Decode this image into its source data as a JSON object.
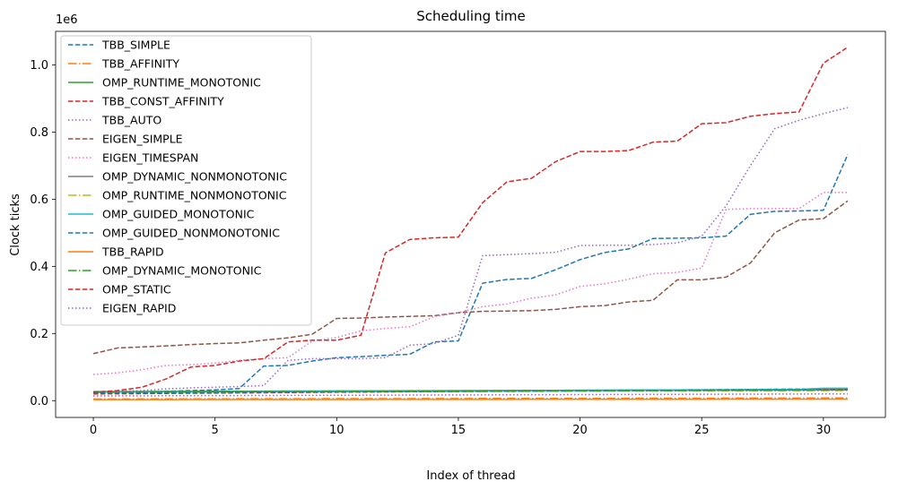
{
  "chart_data": {
    "type": "line",
    "title": "Scheduling time",
    "xlabel": "Index of thread",
    "ylabel": "Clock ticks",
    "y_offset_text": "1e6",
    "xlim": [
      -1.55,
      32.55
    ],
    "ylim": [
      -50000,
      1100000
    ],
    "xticks": [
      0,
      5,
      10,
      15,
      20,
      25,
      30
    ],
    "yticks": [
      0,
      200000,
      400000,
      600000,
      800000,
      1000000
    ],
    "ytick_labels": [
      "0.0",
      "0.2",
      "0.4",
      "0.6",
      "0.8",
      "1.0"
    ],
    "legend_position": "upper left",
    "x": [
      0,
      1,
      2,
      3,
      4,
      5,
      6,
      7,
      8,
      9,
      10,
      11,
      12,
      13,
      14,
      15,
      16,
      17,
      18,
      19,
      20,
      21,
      22,
      23,
      24,
      25,
      26,
      27,
      28,
      29,
      30,
      31
    ],
    "series": [
      {
        "name": "TBB_SIMPLE",
        "color": "#1f77b4",
        "style": "dashed",
        "values": [
          20000,
          22000,
          24000,
          28000,
          30000,
          32000,
          36000,
          103000,
          105000,
          118000,
          128000,
          131000,
          135000,
          138000,
          175000,
          178000,
          350000,
          361000,
          364000,
          390000,
          420000,
          441000,
          452000,
          483000,
          484000,
          485000,
          490000,
          555000,
          564000,
          565000,
          567000,
          733000
        ]
      },
      {
        "name": "TBB_AFFINITY",
        "color": "#ff7f0e",
        "style": "dashdot",
        "values": [
          5000,
          5000,
          5200,
          5200,
          5400,
          5400,
          5600,
          5600,
          5800,
          5800,
          6000,
          6000,
          6200,
          6200,
          6400,
          6400,
          6600,
          6600,
          6800,
          6800,
          7000,
          7000,
          7200,
          7200,
          7400,
          7400,
          7600,
          7600,
          7800,
          7800,
          8000,
          8000
        ]
      },
      {
        "name": "OMP_RUNTIME_MONOTONIC",
        "color": "#2ca02c",
        "style": "solid",
        "values": [
          27000,
          27200,
          27400,
          27600,
          27800,
          28000,
          28200,
          28400,
          28600,
          28800,
          29000,
          29200,
          29400,
          29600,
          29800,
          30000,
          30200,
          30400,
          30600,
          30800,
          31000,
          31200,
          31400,
          31600,
          31800,
          32000,
          32200,
          32400,
          32600,
          32800,
          33000,
          33200
        ]
      },
      {
        "name": "TBB_CONST_AFFINITY",
        "color": "#d62728",
        "style": "dashed",
        "values": [
          20000,
          20500,
          21000,
          21500,
          22000,
          22500,
          23000,
          23500,
          24000,
          24500,
          25000,
          25500,
          26000,
          26500,
          27000,
          27500,
          28000,
          28500,
          29000,
          29500,
          30000,
          30500,
          31000,
          31500,
          32000,
          32500,
          33000,
          33500,
          34000,
          34500,
          35000,
          35500
        ]
      },
      {
        "name": "TBB_AUTO",
        "color": "#9467bd",
        "style": "dotted",
        "values": [
          22000,
          28000,
          30000,
          35000,
          38000,
          40000,
          42000,
          45000,
          120000,
          125000,
          125000,
          125000,
          128000,
          165000,
          170000,
          195000,
          432000,
          435000,
          438000,
          442000,
          462000,
          463000,
          463000,
          465000,
          470000,
          490000,
          580000,
          700000,
          810000,
          835000,
          855000,
          873000
        ]
      },
      {
        "name": "EIGEN_SIMPLE",
        "color": "#8c564b",
        "style": "dashed",
        "values": [
          140000,
          157000,
          160000,
          163000,
          167000,
          170000,
          172000,
          180000,
          187000,
          198000,
          245000,
          246000,
          249000,
          251000,
          253000,
          262000,
          266000,
          267000,
          268000,
          272000,
          280000,
          283000,
          294000,
          299000,
          360000,
          360000,
          368000,
          410000,
          500000,
          538000,
          542000,
          595000
        ]
      },
      {
        "name": "EIGEN_TIMESPAN",
        "color": "#e377c2",
        "style": "dotted",
        "values": [
          78000,
          83000,
          92000,
          105000,
          107000,
          112000,
          120000,
          125000,
          128000,
          178000,
          188000,
          208000,
          215000,
          220000,
          250000,
          262000,
          280000,
          288000,
          305000,
          315000,
          340000,
          348000,
          362000,
          378000,
          382000,
          395000,
          570000,
          572000,
          572000,
          572000,
          620000,
          620000
        ]
      },
      {
        "name": "OMP_DYNAMIC_NONMONOTONIC",
        "color": "#7f7f7f",
        "style": "solid",
        "values": [
          26000,
          26200,
          26400,
          26600,
          26800,
          27000,
          27200,
          27400,
          27600,
          27800,
          28000,
          28200,
          28400,
          28600,
          28800,
          29000,
          29200,
          29400,
          29600,
          29800,
          30000,
          30200,
          30400,
          30600,
          30800,
          31000,
          31200,
          31400,
          31600,
          31800,
          32000,
          32200
        ]
      },
      {
        "name": "OMP_RUNTIME_NONMONOTONIC",
        "color": "#bcbd22",
        "style": "dashdot",
        "values": [
          24000,
          24200,
          24400,
          24600,
          24800,
          25000,
          25200,
          25400,
          25600,
          25800,
          26000,
          26200,
          26400,
          26600,
          26800,
          27000,
          27200,
          27400,
          27600,
          27800,
          28000,
          28200,
          28400,
          28600,
          28800,
          29000,
          29200,
          29400,
          29600,
          29800,
          30000,
          30200
        ]
      },
      {
        "name": "OMP_GUIDED_MONOTONIC",
        "color": "#17becf",
        "style": "solid",
        "values": [
          25000,
          25300,
          25600,
          25900,
          26200,
          26500,
          26800,
          27100,
          27400,
          27700,
          28000,
          28300,
          28600,
          28900,
          29200,
          29500,
          29800,
          30100,
          30400,
          30700,
          31000,
          31300,
          31600,
          31900,
          32200,
          32500,
          32800,
          33100,
          33400,
          33700,
          37000,
          37000
        ]
      },
      {
        "name": "OMP_GUIDED_NONMONOTONIC",
        "color": "#1f77b4",
        "style": "dashed",
        "values": [
          23000,
          23300,
          23600,
          23900,
          24200,
          24500,
          24800,
          25100,
          25400,
          25700,
          26000,
          26300,
          26600,
          26900,
          27200,
          27500,
          27800,
          28100,
          28400,
          28700,
          29000,
          29300,
          29600,
          29900,
          30200,
          30500,
          30800,
          31100,
          31400,
          31700,
          32000,
          32300
        ]
      },
      {
        "name": "TBB_RAPID",
        "color": "#ff7f0e",
        "style": "solid",
        "values": [
          3000,
          3000,
          3100,
          3100,
          3200,
          3200,
          3300,
          3300,
          3400,
          3400,
          3500,
          3500,
          3600,
          3600,
          3700,
          3700,
          3800,
          3800,
          3900,
          3900,
          4000,
          4000,
          4100,
          4100,
          4200,
          4200,
          4300,
          4300,
          4400,
          4400,
          4500,
          4500
        ]
      },
      {
        "name": "OMP_DYNAMIC_MONOTONIC",
        "color": "#2ca02c",
        "style": "dashdot",
        "values": [
          25500,
          25700,
          25900,
          26100,
          26300,
          26500,
          26700,
          26900,
          27100,
          27300,
          27500,
          27700,
          27900,
          28100,
          28300,
          28500,
          28700,
          28900,
          29100,
          29300,
          29500,
          29700,
          29900,
          30100,
          30300,
          30500,
          30700,
          30900,
          31100,
          31300,
          31500,
          31700
        ]
      },
      {
        "name": "OMP_STATIC",
        "color": "#d62728",
        "style": "dashed",
        "values": [
          25000,
          30000,
          40000,
          65000,
          100000,
          105000,
          118000,
          125000,
          175000,
          180000,
          180000,
          195000,
          440000,
          480000,
          485000,
          487000,
          590000,
          652000,
          662000,
          712000,
          742000,
          742000,
          745000,
          770000,
          773000,
          825000,
          828000,
          847000,
          855000,
          860000,
          1005000,
          1053000
        ]
      },
      {
        "name": "EIGEN_RAPID",
        "color": "#9467bd",
        "style": "dotted",
        "values": [
          14000,
          14200,
          14400,
          14600,
          14800,
          15000,
          15200,
          15400,
          15600,
          15800,
          16000,
          16200,
          16400,
          16600,
          16800,
          17000,
          17200,
          17400,
          17600,
          17800,
          18000,
          18200,
          18400,
          18600,
          18800,
          19000,
          19200,
          19400,
          19600,
          19800,
          20000,
          20200
        ]
      }
    ]
  }
}
